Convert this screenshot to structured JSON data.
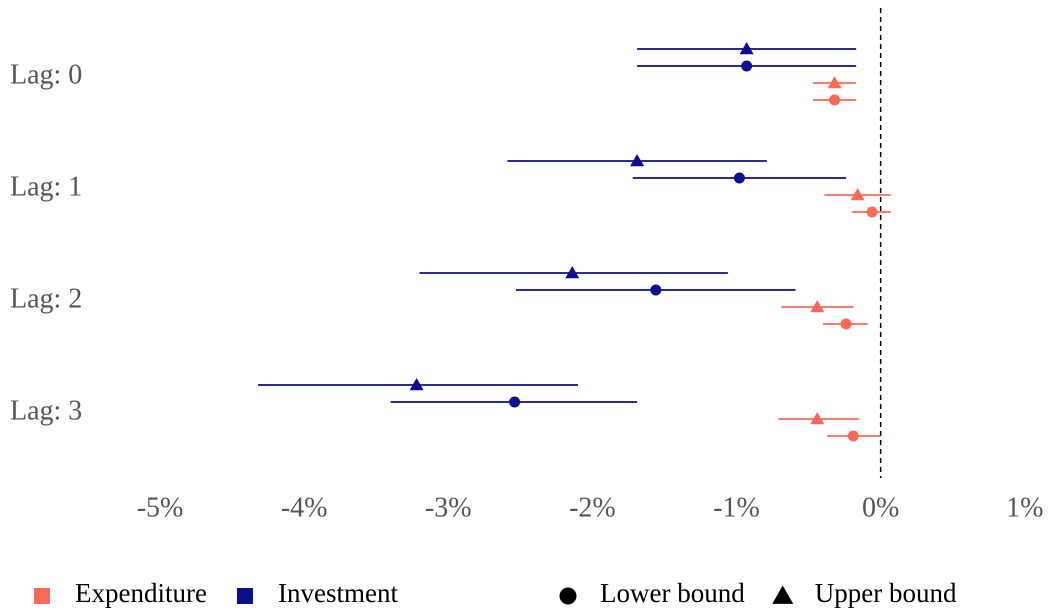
{
  "chart_data": {
    "type": "forest",
    "categories": [
      "Lag: 0",
      "Lag: 1",
      "Lag: 2",
      "Lag: 3"
    ],
    "shapes": [
      {
        "name": "Lower bound",
        "marker": "circle"
      },
      {
        "name": "Upper bound",
        "marker": "triangle"
      }
    ],
    "series": [
      {
        "name": "Expenditure",
        "color": "#f96a58",
        "estimates": [
          {
            "values": [
              -0.32,
              -0.06,
              -0.24,
              -0.19
            ],
            "ci_low": [
              -0.47,
              -0.2,
              -0.4,
              -0.37
            ],
            "ci_high": [
              -0.17,
              0.07,
              -0.09,
              0
            ]
          },
          {
            "values": [
              -0.32,
              -0.16,
              -0.44,
              -0.44
            ],
            "ci_low": [
              -0.47,
              -0.39,
              -0.69,
              -0.71
            ],
            "ci_high": [
              -0.17,
              0.07,
              -0.19,
              -0.15
            ]
          }
        ]
      },
      {
        "name": "Investment",
        "color": "#0a0f8c",
        "estimates": [
          {
            "values": [
              -0.93,
              -0.98,
              -1.56,
              -2.54
            ],
            "ci_low": [
              -1.69,
              -1.72,
              -2.53,
              -3.4
            ],
            "ci_high": [
              -0.17,
              -0.24,
              -0.59,
              -1.69
            ]
          },
          {
            "values": [
              -0.93,
              -1.69,
              -2.14,
              -3.22
            ],
            "ci_low": [
              -1.69,
              -2.59,
              -3.2,
              -4.32
            ],
            "ci_high": [
              -0.17,
              -0.79,
              -1.06,
              -2.1
            ]
          }
        ]
      }
    ],
    "reference_line": 0,
    "xlim": [
      -5.5,
      1.05
    ],
    "xticks": [
      {
        "value": -5,
        "label": "-5%"
      },
      {
        "value": -4,
        "label": "-4%"
      },
      {
        "value": -3,
        "label": "-3%"
      },
      {
        "value": -2,
        "label": "-2%"
      },
      {
        "value": -1,
        "label": "-1%"
      },
      {
        "value": 0,
        "label": "0%"
      },
      {
        "value": 1,
        "label": "1%"
      }
    ]
  }
}
